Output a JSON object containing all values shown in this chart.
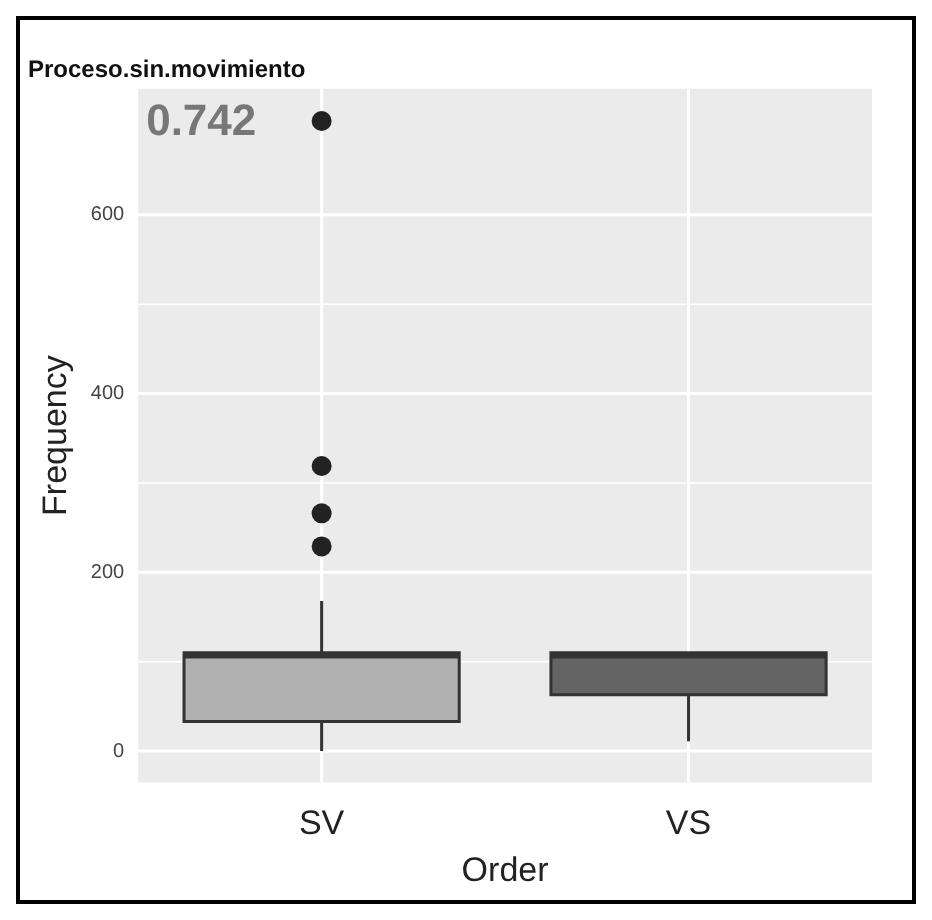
{
  "chart_data": {
    "type": "box",
    "title": "Proceso.sin.movimiento",
    "xlabel": "Order",
    "ylabel": "Frequency",
    "categories": [
      "SV",
      "VS"
    ],
    "colors": [
      "#b0b0b0",
      "#646464"
    ],
    "boxes": [
      {
        "low": 0,
        "q1": 33,
        "median": 107,
        "q3": 110,
        "high": 168,
        "outliers": [
          229,
          266,
          319,
          705
        ]
      },
      {
        "low": 11,
        "q1": 63,
        "median": 107,
        "q3": 110,
        "high": 110
      }
    ],
    "ylim": [
      -35,
      741
    ],
    "yticks": [
      0,
      200,
      400,
      600
    ],
    "grid": true,
    "annotations": [
      "0.742"
    ]
  }
}
